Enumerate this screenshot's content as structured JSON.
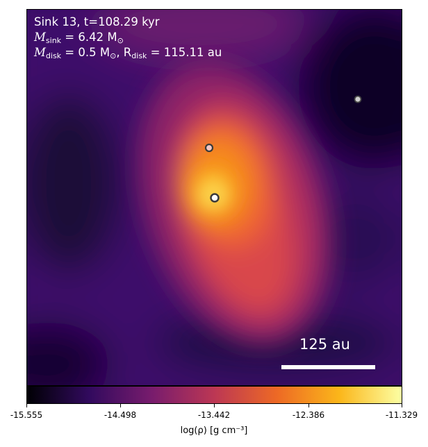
{
  "header": {
    "line1": "Sink 13, t=108.29 kyr",
    "m_sink_label": "M",
    "m_sink_sub": "sink",
    "m_sink_value": " = 6.42 M",
    "m_sink_unit_sub": "⊙",
    "m_disk_label": "M",
    "m_disk_sub": "disk",
    "m_disk_value": " = 0.5 M",
    "m_disk_unit_sub": "⊙",
    "r_disk_label": ", R",
    "r_disk_sub": "disk",
    "r_disk_value": " = 115.11 au"
  },
  "scalebar": {
    "label": "125 au"
  },
  "colorbar": {
    "label": "log(ρ) [g cm⁻³]",
    "ticks": [
      "-15.555",
      "-14.498",
      "-13.442",
      "-12.386",
      "-11.329"
    ],
    "colors": [
      "#000004",
      "#320a5e",
      "#781c6d",
      "#bc3754",
      "#ed6925",
      "#fbb61a",
      "#fcffa4"
    ]
  },
  "sinks": [
    {
      "name": "sink-primary"
    },
    {
      "name": "sink-secondary"
    },
    {
      "name": "sink-tertiary"
    }
  ]
}
